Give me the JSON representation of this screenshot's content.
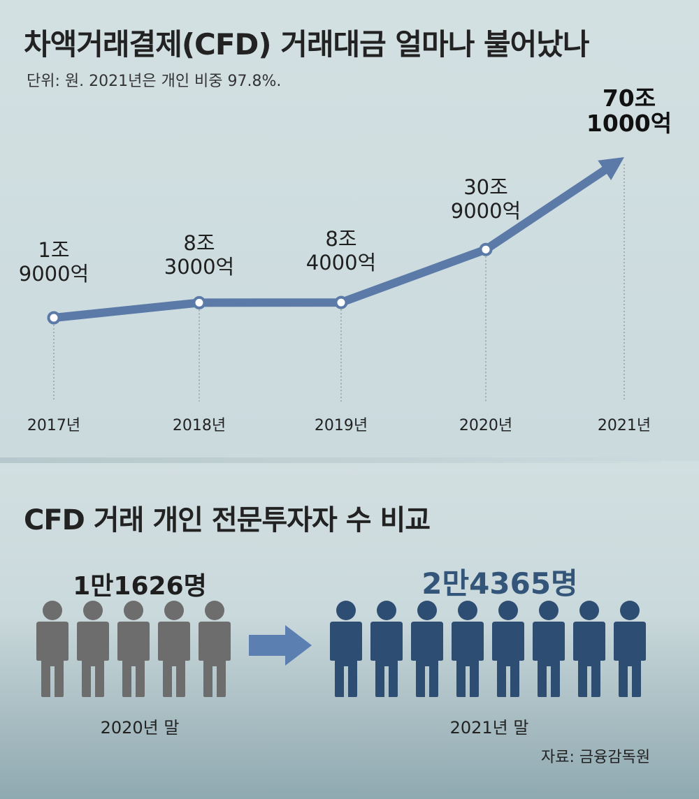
{
  "title": "차액거래결제(CFD) 거래대금 얼마나 불어났나",
  "subtitle": "단위: 원. 2021년은 개인 비중 97.8%.",
  "chart_data": {
    "type": "line",
    "title": "차액거래결제(CFD) 거래대금 얼마나 불어났나",
    "unit": "원",
    "x": [
      "2017년",
      "2018년",
      "2019년",
      "2020년",
      "2021년"
    ],
    "values": [
      1.9,
      8.3,
      8.4,
      30.9,
      70.1
    ],
    "value_unit": "조",
    "data_labels": [
      [
        "1조",
        "9000억"
      ],
      [
        "8조",
        "3000억"
      ],
      [
        "8조",
        "4000억"
      ],
      [
        "30조",
        "9000억"
      ],
      [
        "70조",
        "1000억"
      ]
    ],
    "ylim": [
      0,
      75
    ],
    "grid": false,
    "line_color": "#5b7aa8",
    "last_point_arrow": true
  },
  "comparison": {
    "title": "CFD 거래 개인 전문투자자 수 비교",
    "before": {
      "count_label": "1만1626명",
      "count": 11626,
      "period": "2020년 말",
      "icon": "person-icon",
      "icons_shown": 5,
      "color": "#6d6d6d"
    },
    "after": {
      "count_label": "2만4365명",
      "count": 24365,
      "period": "2021년 말",
      "icon": "person-icon",
      "icons_shown": 8,
      "color": "#2e4d73"
    },
    "arrow_icon": "arrow-right-icon",
    "arrow_color": "#5a7fb0"
  },
  "source": "자료: 금융감독원"
}
